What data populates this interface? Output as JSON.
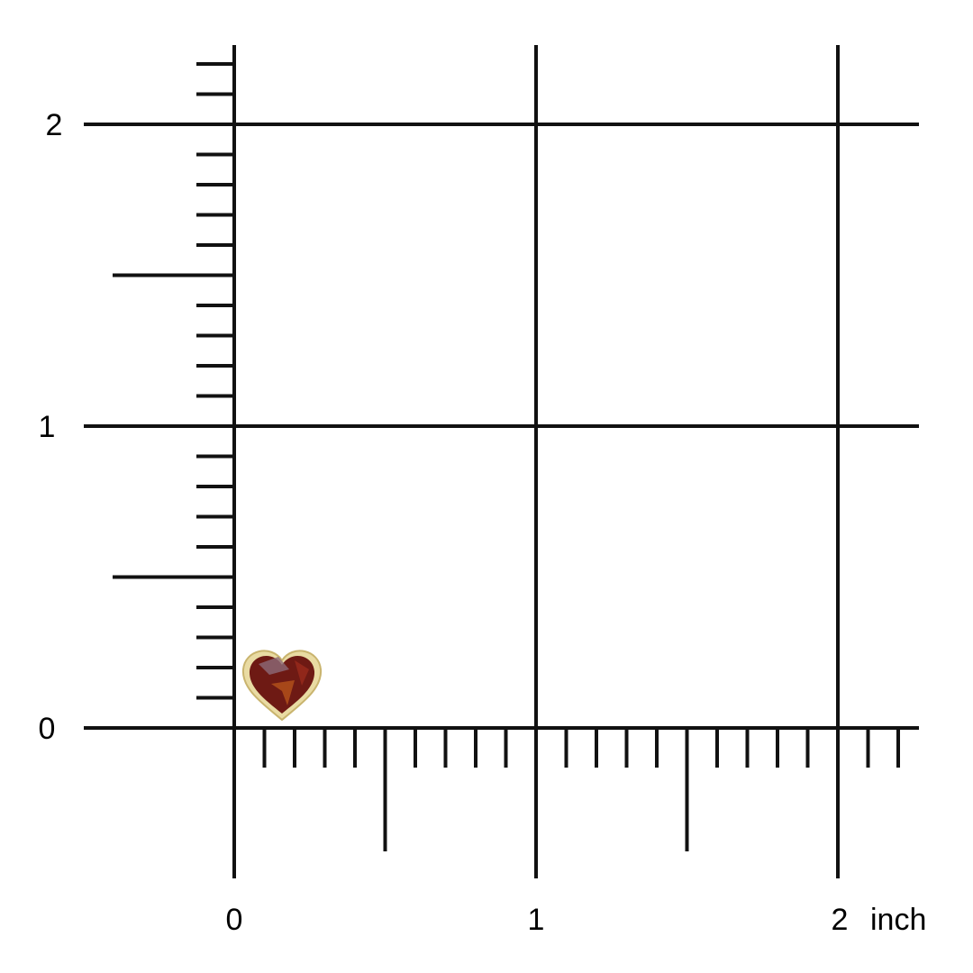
{
  "grid": {
    "unit": "inch",
    "x_labels": [
      "0",
      "1",
      "2"
    ],
    "y_labels": [
      "0",
      "1",
      "2"
    ],
    "x_unit_label": "inch",
    "minor_tick_step": 0.1,
    "major_tick_step": 0.5,
    "ruler_extent": 2.2,
    "line_color": "#111111"
  },
  "product": {
    "type": "heart earring",
    "stone_color": "#7a1a12",
    "setting_color": "#e8d9a0",
    "approx_size_inch": 0.25
  }
}
